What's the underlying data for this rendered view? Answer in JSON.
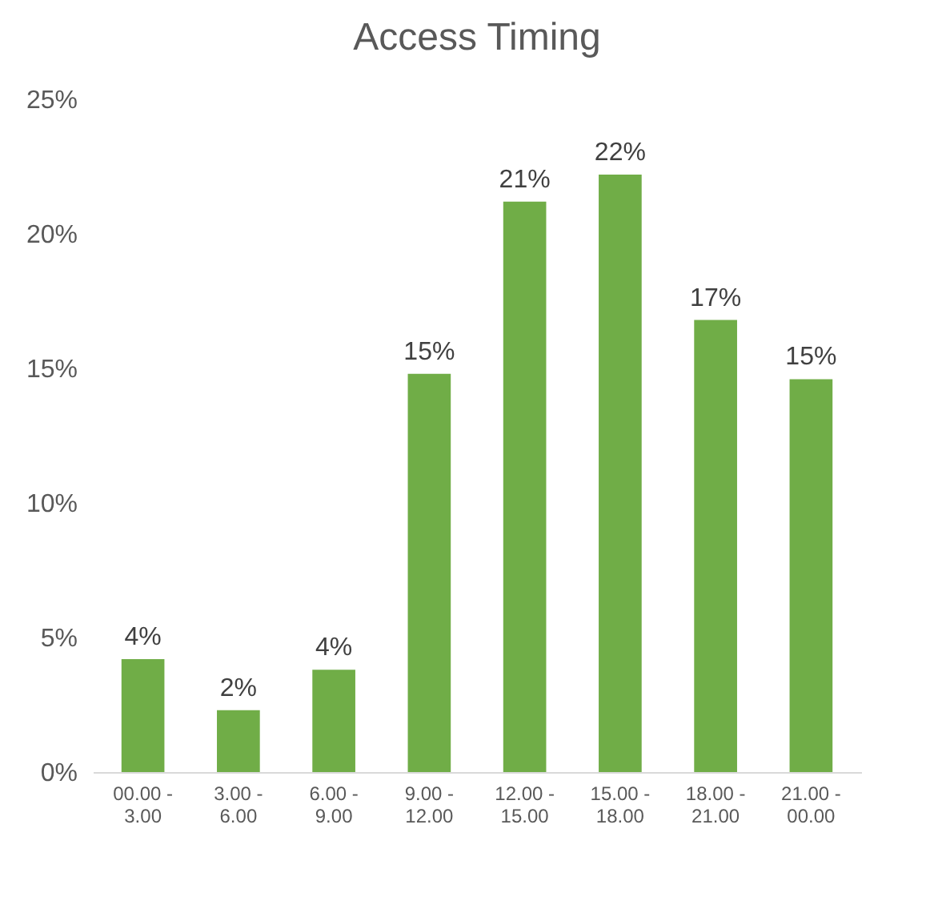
{
  "chart_data": {
    "type": "bar",
    "title": "Access Timing",
    "categories": [
      "00.00 - 3.00",
      "3.00 - 6.00",
      "6.00 - 9.00",
      "9.00 - 12.00",
      "12.00 - 15.00",
      "15.00 - 18.00",
      "18.00 - 21.00",
      "21.00 - 00.00"
    ],
    "values": [
      4.2,
      2.3,
      3.8,
      14.8,
      21.2,
      22.2,
      16.8,
      14.6
    ],
    "value_labels": [
      "4%",
      "2%",
      "4%",
      "15%",
      "21%",
      "22%",
      "17%",
      "15%"
    ],
    "color": "#70ad47",
    "ylim": [
      0,
      25
    ],
    "yticks": [
      {
        "value": 0,
        "label": "0%"
      },
      {
        "value": 5,
        "label": "5%"
      },
      {
        "value": 10,
        "label": "10%"
      },
      {
        "value": 15,
        "label": "15%"
      },
      {
        "value": 20,
        "label": "20%"
      },
      {
        "value": 25,
        "label": "25%"
      }
    ],
    "grid": false
  }
}
